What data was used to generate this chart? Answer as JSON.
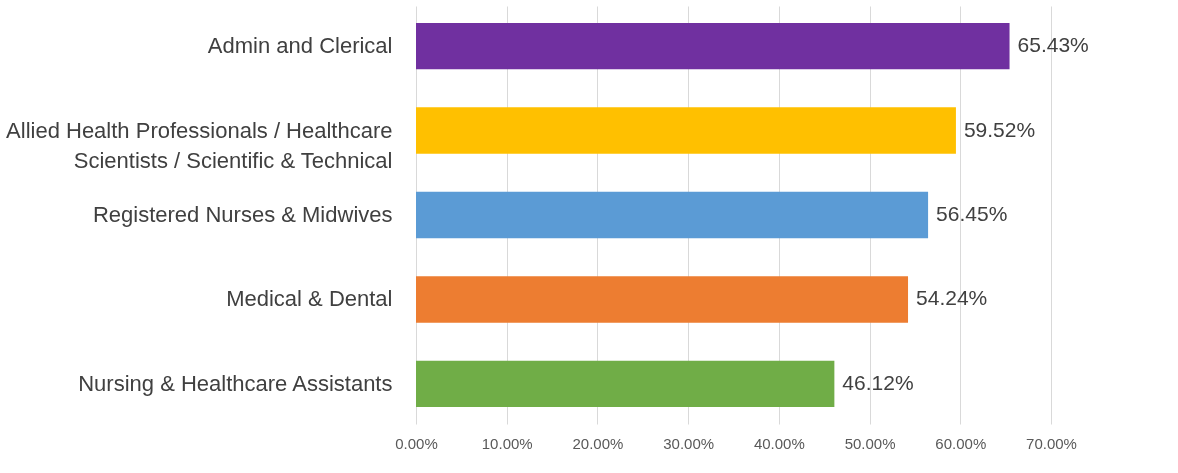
{
  "chart_data": {
    "type": "bar",
    "orientation": "horizontal",
    "categories": [
      "Admin and Clerical",
      "Allied Health Professionals / Healthcare Scientists / Scientific & Technical",
      "Registered Nurses & Midwives",
      "Medical & Dental",
      "Nursing & Healthcare Assistants"
    ],
    "values": [
      65.43,
      59.52,
      56.45,
      54.24,
      46.12
    ],
    "colors": [
      "#7030a0",
      "#ffc000",
      "#5b9bd5",
      "#ed7d31",
      "#70ad47"
    ],
    "value_labels": [
      "65.43%",
      "59.52%",
      "56.45%",
      "54.24%",
      "46.12%"
    ],
    "xlim": [
      0,
      70
    ],
    "xticks": [
      {
        "value": 0,
        "label": "0.00%"
      },
      {
        "value": 10,
        "label": "10.00%"
      },
      {
        "value": 20,
        "label": "20.00%"
      },
      {
        "value": 30,
        "label": "30.00%"
      },
      {
        "value": 40,
        "label": "40.00%"
      },
      {
        "value": 50,
        "label": "50.00%"
      },
      {
        "value": 60,
        "label": "60.00%"
      },
      {
        "value": 70,
        "label": "70.00%"
      }
    ],
    "grid": "x"
  }
}
